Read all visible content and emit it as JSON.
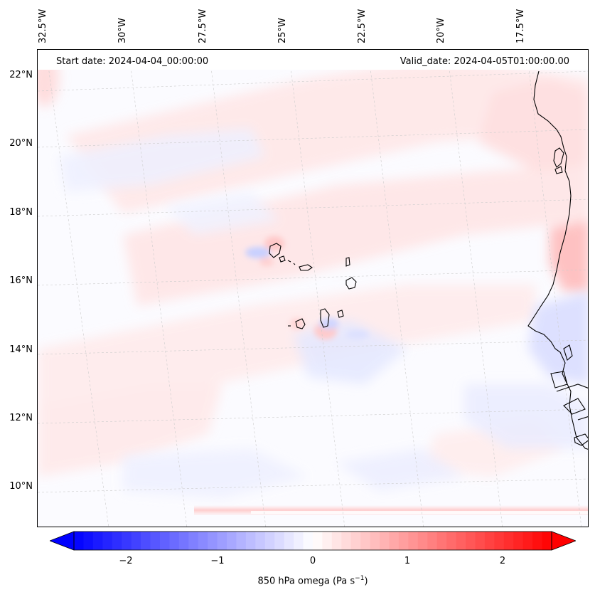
{
  "header": {
    "start_date": "Start date: 2024-04-04_00:00:00",
    "valid_date": "Valid_date: 2024-04-05T01:00:00.00"
  },
  "longitude_labels": [
    "32.5°W",
    "30°W",
    "27.5°W",
    "25°W",
    "22.5°W",
    "20°W",
    "17.5°W"
  ],
  "latitude_labels": [
    "22°N",
    "20°N",
    "18°N",
    "16°N",
    "14°N",
    "12°N",
    "10°N"
  ],
  "colorbar": {
    "ticks": [
      "−2",
      "−1",
      "0",
      "1",
      "2"
    ],
    "tick_values": [
      -2,
      -1,
      0,
      1,
      2
    ],
    "range": [
      -2.5,
      2.5
    ],
    "label_main": "850 hPa omega (Pa s",
    "label_sup": "−1",
    "label_end": ")",
    "colors": {
      "negative": "#0000ff",
      "zero": "#ffffff",
      "positive": "#ff0000"
    }
  },
  "map": {
    "field": "850 hPa omega",
    "coastline_color": "#000000",
    "gridline_color": "#cccccc"
  }
}
